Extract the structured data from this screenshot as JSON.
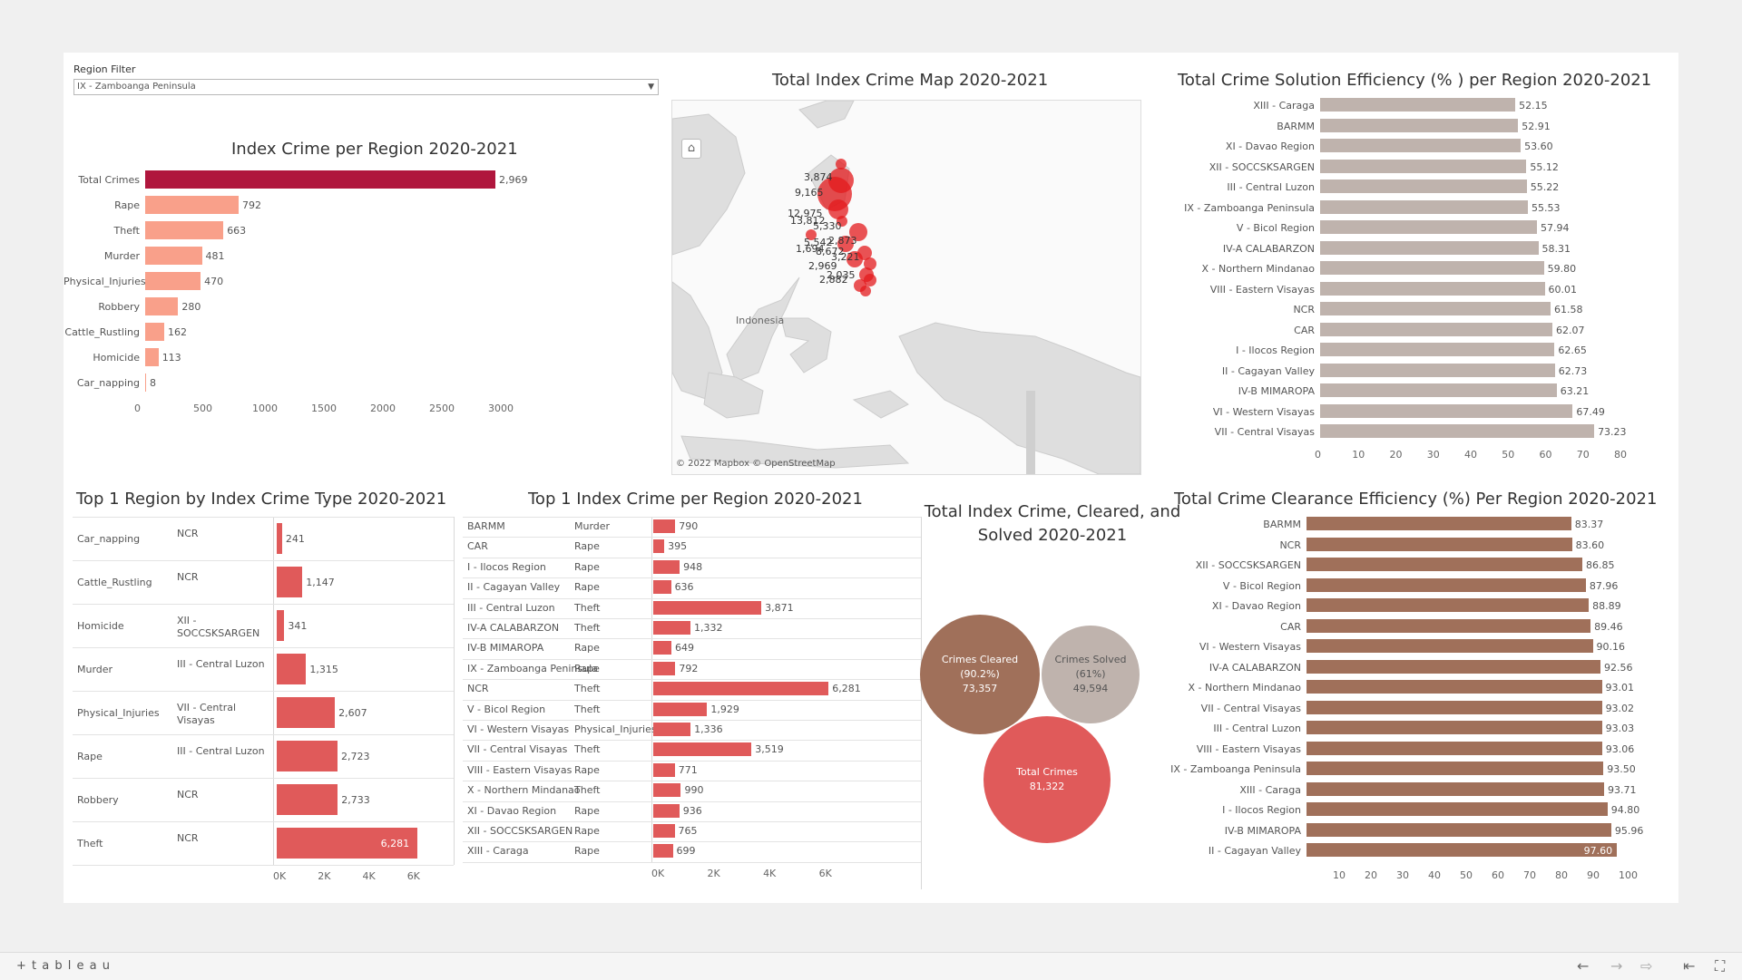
{
  "filter": {
    "label": "Region Filter",
    "value": "IX - Zamboanga Peninsula"
  },
  "index_crime": {
    "title": "Index Crime per Region 2020-2021",
    "chart_data": {
      "type": "bar",
      "orientation": "horizontal",
      "categories": [
        "Total Crimes",
        "Rape",
        "Theft",
        "Murder",
        "Physical_Injuries",
        "Robbery",
        "Cattle_Rustling",
        "Homicide",
        "Car_napping"
      ],
      "values": [
        2969,
        792,
        663,
        481,
        470,
        280,
        162,
        113,
        8
      ],
      "value_labels": [
        "2,969",
        "792",
        "663",
        "481",
        "470",
        "280",
        "162",
        "113",
        "8"
      ],
      "ticks": [
        "0",
        "500",
        "1000",
        "1500",
        "2000",
        "2500",
        "3000"
      ],
      "xlim": [
        0,
        3000
      ],
      "colors": {
        "total": "#b0163d",
        "rest": "#f9a08a"
      }
    }
  },
  "map": {
    "title": "Total Index Crime Map 2020-2021",
    "country_label": "Indonesia",
    "attribution": "© 2022 Mapbox © OpenStreetMap",
    "home_icon": "home-icon",
    "point_labels": [
      "3,874",
      "9,165",
      "12,975",
      "13,812",
      "5,330",
      "5,542",
      "2,873",
      "8,672",
      "3,221",
      "2,969",
      "2,035",
      "2,882",
      "1,694"
    ]
  },
  "solution": {
    "title": "Total Crime Solution Efficiency (% ) per Region 2020-2021",
    "chart_data": {
      "type": "bar",
      "orientation": "horizontal",
      "categories": [
        "XIII - Caraga",
        "BARMM",
        "XI - Davao Region",
        "XII - SOCCSKSARGEN",
        "III - Central Luzon",
        "IX - Zamboanga Peninsula",
        "V - Bicol Region",
        "IV-A CALABARZON",
        "X - Northern Mindanao",
        "VIII - Eastern Visayas",
        "NCR",
        "CAR",
        "I - Ilocos Region",
        "II - Cagayan Valley",
        "IV-B MIMAROPA",
        "VI - Western Visayas",
        "VII - Central Visayas"
      ],
      "values": [
        52.15,
        52.91,
        53.6,
        55.12,
        55.22,
        55.53,
        57.94,
        58.31,
        59.8,
        60.01,
        61.58,
        62.07,
        62.65,
        62.73,
        63.21,
        67.49,
        73.23
      ],
      "value_labels": [
        "52.15",
        "52.91",
        "53.60",
        "55.12",
        "55.22",
        "55.53",
        "57.94",
        "58.31",
        "59.80",
        "60.01",
        "61.58",
        "62.07",
        "62.65",
        "62.73",
        "63.21",
        "67.49",
        "73.23"
      ],
      "ticks": [
        "0",
        "10",
        "20",
        "30",
        "40",
        "50",
        "60",
        "70",
        "80"
      ],
      "xlim": [
        0,
        80
      ],
      "color": "#bfb3ad"
    }
  },
  "top_region": {
    "title": "Top 1 Region by Index Crime Type 2020-2021",
    "chart_data": {
      "type": "bar",
      "orientation": "horizontal",
      "rows": [
        {
          "type": "Car_napping",
          "region": "NCR",
          "value": 241,
          "label": "241"
        },
        {
          "type": "Cattle_Rustling",
          "region": "NCR",
          "value": 1147,
          "label": "1,147"
        },
        {
          "type": "Homicide",
          "region": "XII - SOCCSKSARGEN",
          "value": 341,
          "label": "341"
        },
        {
          "type": "Murder",
          "region": "III - Central Luzon",
          "value": 1315,
          "label": "1,315"
        },
        {
          "type": "Physical_Injuries",
          "region": "VII - Central Visayas",
          "value": 2607,
          "label": "2,607"
        },
        {
          "type": "Rape",
          "region": "III - Central Luzon",
          "value": 2723,
          "label": "2,723"
        },
        {
          "type": "Robbery",
          "region": "NCR",
          "value": 2733,
          "label": "2,733"
        },
        {
          "type": "Theft",
          "region": "NCR",
          "value": 6281,
          "label": "6,281"
        }
      ],
      "ticks": [
        "0K",
        "2K",
        "4K",
        "6K"
      ],
      "xlim": [
        0,
        6500
      ],
      "color": "#e05a5a"
    }
  },
  "top_crime": {
    "title": "Top 1 Index Crime per Region 2020-2021",
    "chart_data": {
      "type": "bar",
      "orientation": "horizontal",
      "rows": [
        {
          "region": "BARMM",
          "crime": "Murder",
          "value": 790,
          "label": "790"
        },
        {
          "region": "CAR",
          "crime": "Rape",
          "value": 395,
          "label": "395"
        },
        {
          "region": "I - Ilocos Region",
          "crime": "Rape",
          "value": 948,
          "label": "948"
        },
        {
          "region": "II - Cagayan Valley",
          "crime": "Rape",
          "value": 636,
          "label": "636"
        },
        {
          "region": "III - Central Luzon",
          "crime": "Theft",
          "value": 3871,
          "label": "3,871"
        },
        {
          "region": "IV-A CALABARZON",
          "crime": "Theft",
          "value": 1332,
          "label": "1,332"
        },
        {
          "region": "IV-B MIMAROPA",
          "crime": "Rape",
          "value": 649,
          "label": "649"
        },
        {
          "region": "IX - Zamboanga Peninsula",
          "crime": "Rape",
          "value": 792,
          "label": "792"
        },
        {
          "region": "NCR",
          "crime": "Theft",
          "value": 6281,
          "label": "6,281"
        },
        {
          "region": "V - Bicol Region",
          "crime": "Theft",
          "value": 1929,
          "label": "1,929"
        },
        {
          "region": "VI - Western Visayas",
          "crime": "Physical_Injuries",
          "value": 1336,
          "label": "1,336"
        },
        {
          "region": "VII - Central Visayas",
          "crime": "Theft",
          "value": 3519,
          "label": "3,519"
        },
        {
          "region": "VIII - Eastern Visayas",
          "crime": "Rape",
          "value": 771,
          "label": "771"
        },
        {
          "region": "X - Northern Mindanao",
          "crime": "Theft",
          "value": 990,
          "label": "990"
        },
        {
          "region": "XI - Davao Region",
          "crime": "Rape",
          "value": 936,
          "label": "936"
        },
        {
          "region": "XII - SOCCSKSARGEN",
          "crime": "Rape",
          "value": 765,
          "label": "765"
        },
        {
          "region": "XIII - Caraga",
          "crime": "Rape",
          "value": 699,
          "label": "699"
        }
      ],
      "ticks": [
        "0K",
        "2K",
        "4K",
        "6K"
      ],
      "xlim": [
        0,
        6500
      ],
      "color": "#e05a5a"
    }
  },
  "bubbles": {
    "title": "Total Index Crime, Cleared, and Solved 2020-2021",
    "items": [
      {
        "name": "Crimes Cleared",
        "pct": "(90.2%)",
        "value": "73,357",
        "color": "#a0705a"
      },
      {
        "name": "Crimes Solved",
        "pct": "(61%)",
        "value": "49,594",
        "color": "#bfb3ad"
      },
      {
        "name": "Total Crimes",
        "pct": "",
        "value": "81,322",
        "color": "#e05a5a"
      }
    ]
  },
  "clearance": {
    "title": "Total Crime Clearance Efficiency (%) Per Region 2020-2021",
    "chart_data": {
      "type": "bar",
      "orientation": "horizontal",
      "categories": [
        "BARMM",
        "NCR",
        "XII - SOCCSKSARGEN",
        "V - Bicol Region",
        "XI - Davao Region",
        "CAR",
        "VI - Western Visayas",
        "IV-A CALABARZON",
        "X - Northern Mindanao",
        "VII - Central Visayas",
        "III - Central Luzon",
        "VIII - Eastern Visayas",
        "IX - Zamboanga Peninsula",
        "XIII - Caraga",
        "I - Ilocos Region",
        "IV-B MIMAROPA",
        "II - Cagayan Valley"
      ],
      "values": [
        83.37,
        83.6,
        86.85,
        87.96,
        88.89,
        89.46,
        90.16,
        92.56,
        93.01,
        93.02,
        93.03,
        93.06,
        93.5,
        93.71,
        94.8,
        95.96,
        97.6
      ],
      "value_labels": [
        "83.37",
        "83.60",
        "86.85",
        "87.96",
        "88.89",
        "89.46",
        "90.16",
        "92.56",
        "93.01",
        "93.02",
        "93.03",
        "93.06",
        "93.50",
        "93.71",
        "94.80",
        "95.96",
        "97.60"
      ],
      "ticks": [
        "10",
        "20",
        "30",
        "40",
        "50",
        "60",
        "70",
        "80",
        "90",
        "100"
      ],
      "xlim": [
        0,
        100
      ],
      "color": "#a0705a"
    }
  },
  "toolbar": {
    "logo": "+ t a b l e a u",
    "icons": [
      "undo-icon",
      "redo-icon",
      "revert-icon",
      "pause-icon",
      "fullscreen-icon"
    ]
  }
}
